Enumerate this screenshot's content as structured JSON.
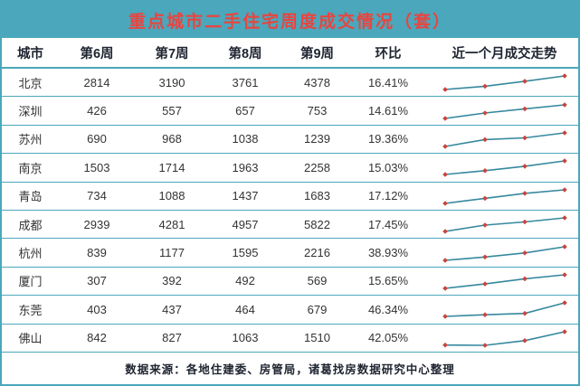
{
  "colors": {
    "frame_teal": "#4BA7BB",
    "title_red": "#E84540",
    "spark_line": "#35889E",
    "spark_marker": "#C7453E",
    "header_text": "#1E2430",
    "body_text": "#333333"
  },
  "chart_data": {
    "type": "table",
    "title": "重点城市二手住宅周度成交情况（套）",
    "columns": [
      "城市",
      "第6周",
      "第7周",
      "第8周",
      "第9周",
      "环比",
      "近一个月成交走势"
    ],
    "trend_column_note": "sparkline of weeks 6-9 values, line with diamond markers",
    "rows": [
      {
        "city": "北京",
        "week_values": [
          2814,
          3190,
          3761,
          4378
        ],
        "wow_change": "16.41%"
      },
      {
        "city": "深圳",
        "week_values": [
          426,
          557,
          657,
          753
        ],
        "wow_change": "14.61%"
      },
      {
        "city": "苏州",
        "week_values": [
          690,
          968,
          1038,
          1239
        ],
        "wow_change": "19.36%"
      },
      {
        "city": "南京",
        "week_values": [
          1503,
          1714,
          1963,
          2258
        ],
        "wow_change": "15.03%"
      },
      {
        "city": "青岛",
        "week_values": [
          734,
          1088,
          1437,
          1683
        ],
        "wow_change": "17.12%"
      },
      {
        "city": "成都",
        "week_values": [
          2939,
          4281,
          4957,
          5822
        ],
        "wow_change": "17.45%"
      },
      {
        "city": "杭州",
        "week_values": [
          839,
          1177,
          1595,
          2216
        ],
        "wow_change": "38.93%"
      },
      {
        "city": "厦门",
        "week_values": [
          307,
          392,
          492,
          569
        ],
        "wow_change": "15.65%"
      },
      {
        "city": "东莞",
        "week_values": [
          403,
          437,
          464,
          679
        ],
        "wow_change": "46.34%"
      },
      {
        "city": "佛山",
        "week_values": [
          842,
          827,
          1063,
          1510
        ],
        "wow_change": "42.05%"
      }
    ],
    "footer": "数据来源：各地住建委、房管局，诸葛找房数据研究中心整理"
  }
}
